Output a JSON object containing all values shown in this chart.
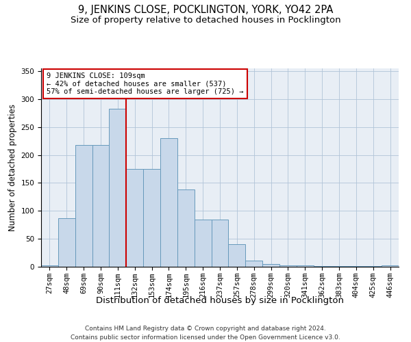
{
  "title": "9, JENKINS CLOSE, POCKLINGTON, YORK, YO42 2PA",
  "subtitle": "Size of property relative to detached houses in Pocklington",
  "xlabel": "Distribution of detached houses by size in Pocklington",
  "ylabel": "Number of detached properties",
  "bar_labels": [
    "27sqm",
    "48sqm",
    "69sqm",
    "90sqm",
    "111sqm",
    "132sqm",
    "153sqm",
    "174sqm",
    "195sqm",
    "216sqm",
    "237sqm",
    "257sqm",
    "278sqm",
    "299sqm",
    "320sqm",
    "341sqm",
    "362sqm",
    "383sqm",
    "404sqm",
    "425sqm",
    "446sqm"
  ],
  "bar_values": [
    3,
    87,
    218,
    218,
    283,
    175,
    175,
    230,
    138,
    85,
    85,
    40,
    11,
    5,
    2,
    3,
    1,
    1,
    1,
    1,
    2
  ],
  "bar_color": "#c8d8ea",
  "bar_edge_color": "#6699bb",
  "vline_x_idx": 4,
  "vline_color": "#cc0000",
  "annotation_box_text": "9 JENKINS CLOSE: 109sqm\n← 42% of detached houses are smaller (537)\n57% of semi-detached houses are larger (725) →",
  "annotation_box_color": "#cc0000",
  "ylim": [
    0,
    355
  ],
  "yticks": [
    0,
    50,
    100,
    150,
    200,
    250,
    300,
    350
  ],
  "grid_color": "#b0c4d8",
  "bg_color": "#e8eef5",
  "footnote": "Contains HM Land Registry data © Crown copyright and database right 2024.\nContains public sector information licensed under the Open Government Licence v3.0.",
  "title_fontsize": 10.5,
  "subtitle_fontsize": 9.5,
  "xlabel_fontsize": 9.5,
  "ylabel_fontsize": 8.5,
  "tick_fontsize": 7.5,
  "annotation_fontsize": 7.5,
  "footnote_fontsize": 6.5
}
